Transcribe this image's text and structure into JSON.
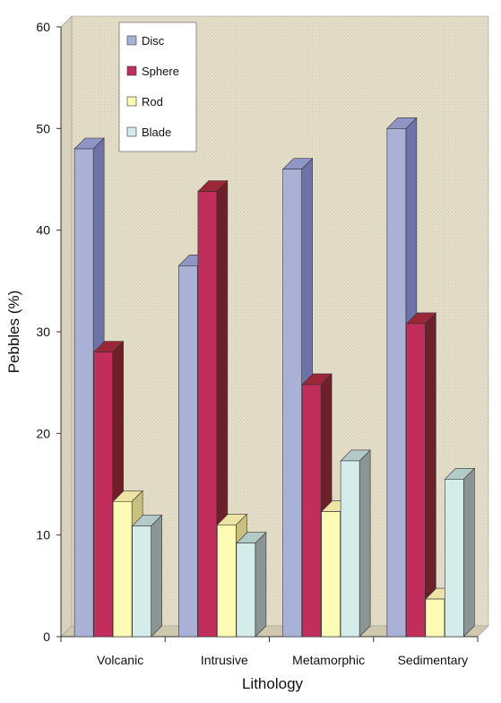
{
  "chart_data": {
    "type": "bar",
    "categories": [
      "Volcanic",
      "Intrusive",
      "Metamorphic",
      "Sedimentary"
    ],
    "series": [
      {
        "name": "Disc",
        "values": [
          48,
          36.5,
          46,
          50
        ]
      },
      {
        "name": "Sphere",
        "values": [
          28,
          43.8,
          24.8,
          30.8
        ]
      },
      {
        "name": "Rod",
        "values": [
          13.3,
          11,
          12.3,
          3.7
        ]
      },
      {
        "name": "Blade",
        "values": [
          10.9,
          9.2,
          17.3,
          15.5
        ]
      }
    ],
    "xlabel": "Lithology",
    "ylabel": "Pebbles (%)",
    "ylim": [
      0,
      60
    ],
    "yticks": [
      "0",
      "10",
      "20",
      "30",
      "40",
      "50",
      "60"
    ],
    "legend_position": "top-left",
    "style": "3d",
    "colors": {
      "Disc": {
        "front": "#a9b2d6",
        "side": "#6d73a8",
        "top": "#8f95c4"
      },
      "Sphere": {
        "front": "#c22e5c",
        "side": "#6e2028",
        "top": "#9a2638"
      },
      "Rod": {
        "front": "#fdfbb4",
        "side": "#c9c07e",
        "top": "#ece4a2"
      },
      "Blade": {
        "front": "#d4ecea",
        "side": "#8a9694",
        "top": "#b2cac8"
      },
      "plot_background": "#e4ddc9",
      "floor": "#c7bfa6"
    }
  }
}
